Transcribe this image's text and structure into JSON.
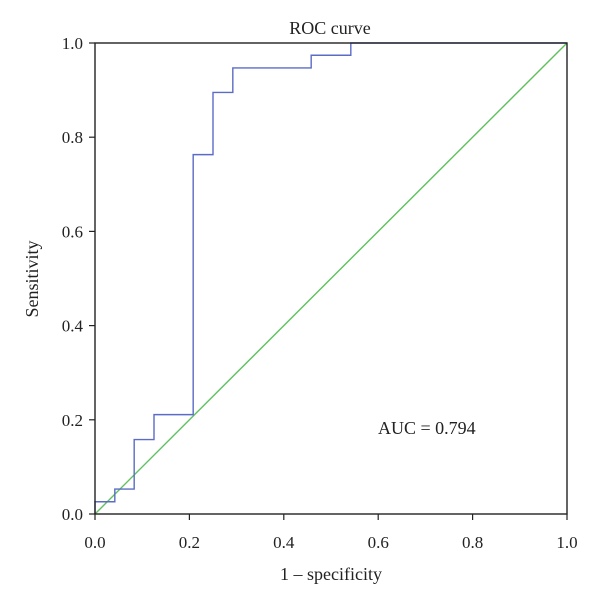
{
  "chart_data": {
    "type": "line",
    "title": "ROC curve",
    "xlabel": "1 – specificity",
    "ylabel": "Sensitivity",
    "xlim": [
      0,
      1
    ],
    "ylim": [
      0,
      1
    ],
    "xticks": [
      "0.0",
      "0.2",
      "0.4",
      "0.6",
      "0.8",
      "1.0"
    ],
    "yticks": [
      "0.0",
      "0.2",
      "0.4",
      "0.6",
      "0.8",
      "1.0"
    ],
    "grid": false,
    "legend": "none",
    "annotation": "AUC = 0.794",
    "series": [
      {
        "color": "#5b6bc6",
        "step": true,
        "x": [
          0,
          0,
          0.042,
          0.042,
          0.083,
          0.083,
          0.125,
          0.125,
          0.208,
          0.208,
          0.25,
          0.25,
          0.292,
          0.292,
          0.458,
          0.458,
          0.542,
          0.542,
          1.0
        ],
        "y": [
          0,
          0.026,
          0.026,
          0.053,
          0.053,
          0.158,
          0.158,
          0.211,
          0.211,
          0.763,
          0.763,
          0.895,
          0.895,
          0.947,
          0.947,
          0.974,
          0.974,
          1.0,
          1.0
        ]
      },
      {
        "color": "#5cc15c",
        "x": [
          0,
          1
        ],
        "y": [
          0,
          1
        ]
      }
    ]
  }
}
